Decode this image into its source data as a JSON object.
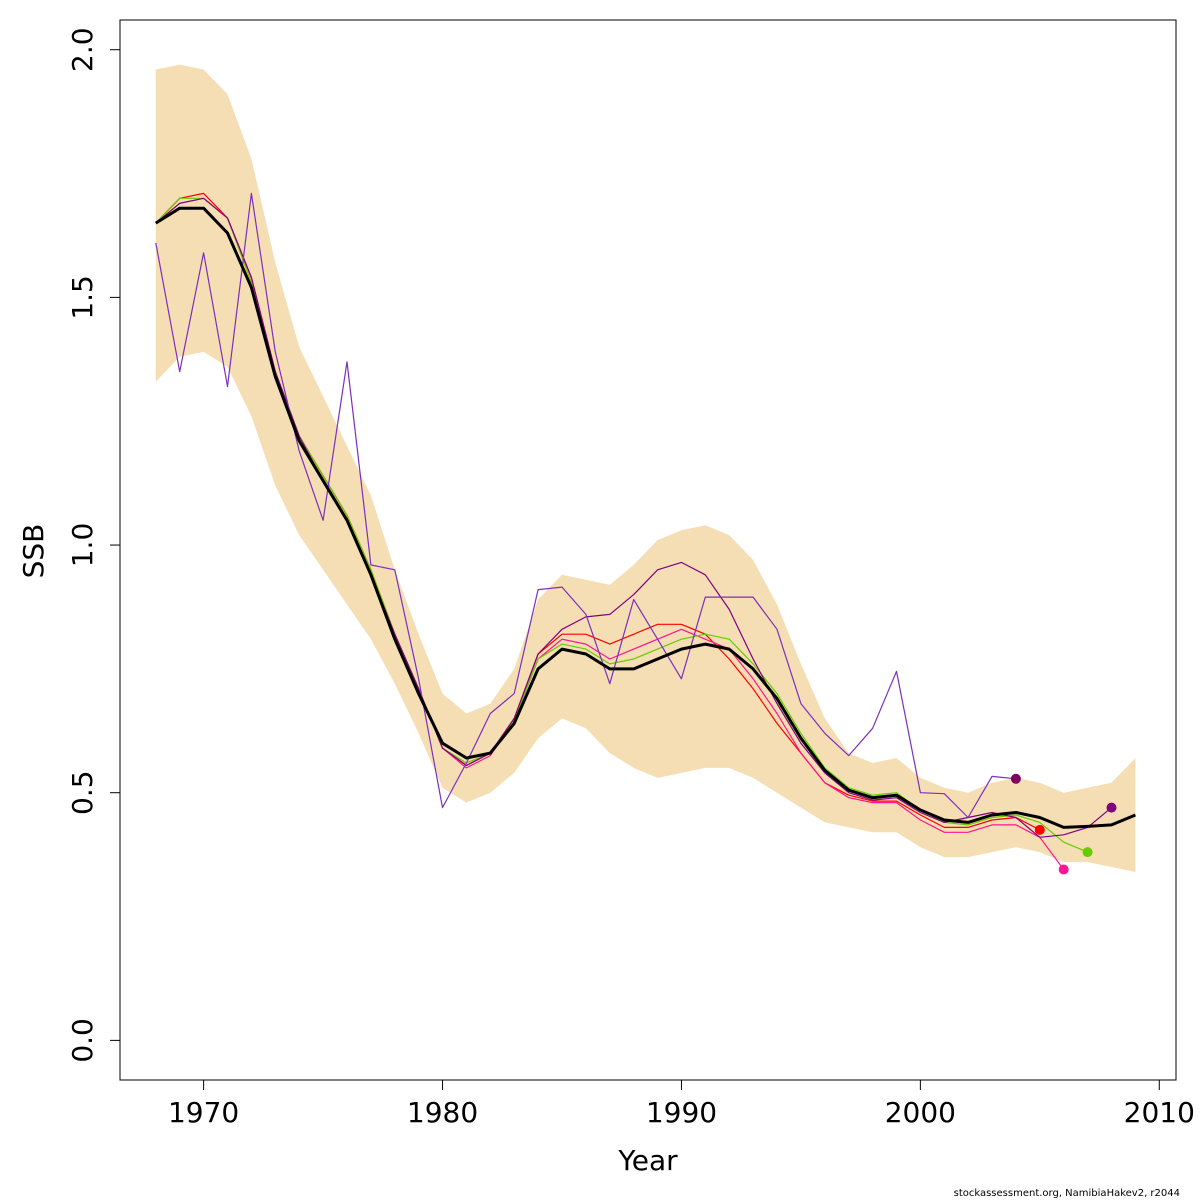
{
  "chart_data": {
    "type": "line",
    "xlabel": "Year",
    "ylabel": "SSB",
    "xlim": [
      1966.5,
      2010.7
    ],
    "ylim": [
      -0.08,
      2.06
    ],
    "xticks": [
      1970,
      1980,
      1990,
      2000,
      2010
    ],
    "yticks": [
      0.0,
      0.5,
      1.0,
      1.5,
      2.0
    ],
    "ytick_labels": [
      "0.0",
      "0.5",
      "1.0",
      "1.5",
      "2.0"
    ],
    "grid": false,
    "credit": "stockassessment.org, NamibiaHakev2, r2044",
    "band_color": "#f5deb3",
    "band": {
      "x": [
        1968,
        1969,
        1970,
        1971,
        1972,
        1973,
        1974,
        1975,
        1976,
        1977,
        1978,
        1979,
        1980,
        1981,
        1982,
        1983,
        1984,
        1985,
        1986,
        1987,
        1988,
        1989,
        1990,
        1991,
        1992,
        1993,
        1994,
        1995,
        1996,
        1997,
        1998,
        1999,
        2000,
        2001,
        2002,
        2003,
        2004,
        2005,
        2006,
        2007,
        2008,
        2009
      ],
      "upper": [
        1.96,
        1.97,
        1.96,
        1.91,
        1.78,
        1.57,
        1.4,
        1.3,
        1.2,
        1.1,
        0.95,
        0.82,
        0.7,
        0.66,
        0.68,
        0.75,
        0.89,
        0.94,
        0.93,
        0.92,
        0.96,
        1.01,
        1.03,
        1.04,
        1.02,
        0.97,
        0.88,
        0.76,
        0.65,
        0.58,
        0.56,
        0.57,
        0.53,
        0.51,
        0.5,
        0.52,
        0.53,
        0.52,
        0.5,
        0.51,
        0.52,
        0.57
      ],
      "lower": [
        1.33,
        1.38,
        1.39,
        1.36,
        1.26,
        1.12,
        1.02,
        0.95,
        0.88,
        0.81,
        0.72,
        0.62,
        0.51,
        0.48,
        0.5,
        0.54,
        0.61,
        0.65,
        0.63,
        0.58,
        0.55,
        0.53,
        0.54,
        0.55,
        0.55,
        0.53,
        0.5,
        0.47,
        0.44,
        0.43,
        0.42,
        0.42,
        0.39,
        0.37,
        0.37,
        0.38,
        0.39,
        0.38,
        0.36,
        0.36,
        0.35,
        0.34
      ]
    },
    "series": [
      {
        "color": "#000000",
        "width": 3,
        "x": [
          1968,
          1969,
          1970,
          1971,
          1972,
          1973,
          1974,
          1975,
          1976,
          1977,
          1978,
          1979,
          1980,
          1981,
          1982,
          1983,
          1984,
          1985,
          1986,
          1987,
          1988,
          1989,
          1990,
          1991,
          1992,
          1993,
          1994,
          1995,
          1996,
          1997,
          1998,
          1999,
          2000,
          2001,
          2002,
          2003,
          2004,
          2005,
          2006,
          2007,
          2008,
          2009
        ],
        "values": [
          1.65,
          1.68,
          1.68,
          1.63,
          1.52,
          1.34,
          1.21,
          1.13,
          1.05,
          0.94,
          0.81,
          0.7,
          0.6,
          0.57,
          0.58,
          0.64,
          0.75,
          0.79,
          0.78,
          0.75,
          0.75,
          0.77,
          0.79,
          0.8,
          0.79,
          0.75,
          0.69,
          0.61,
          0.545,
          0.505,
          0.49,
          0.495,
          0.465,
          0.445,
          0.44,
          0.455,
          0.46,
          0.45,
          0.43,
          0.432,
          0.435,
          0.455
        ]
      },
      {
        "color": "#ff0000",
        "width": 1.2,
        "x": [
          1968,
          1969,
          1970,
          1971,
          1972,
          1973,
          1974,
          1975,
          1976,
          1977,
          1978,
          1979,
          1980,
          1981,
          1982,
          1983,
          1984,
          1985,
          1986,
          1987,
          1988,
          1989,
          1990,
          1991,
          1992,
          1993,
          1994,
          1995,
          1996,
          1997,
          1998,
          1999,
          2000,
          2001,
          2002,
          2003,
          2004,
          2005
        ],
        "values": [
          1.65,
          1.7,
          1.71,
          1.66,
          1.54,
          1.35,
          1.22,
          1.14,
          1.06,
          0.95,
          0.82,
          0.71,
          0.59,
          0.555,
          0.58,
          0.65,
          0.78,
          0.82,
          0.82,
          0.8,
          0.82,
          0.84,
          0.84,
          0.82,
          0.77,
          0.71,
          0.64,
          0.58,
          0.52,
          0.495,
          0.483,
          0.483,
          0.455,
          0.43,
          0.43,
          0.445,
          0.45,
          0.425
        ],
        "end_marker": true
      },
      {
        "color": "#ff1493",
        "width": 1.2,
        "x": [
          1968,
          1969,
          1970,
          1971,
          1972,
          1973,
          1974,
          1975,
          1976,
          1977,
          1978,
          1979,
          1980,
          1981,
          1982,
          1983,
          1984,
          1985,
          1986,
          1987,
          1988,
          1989,
          1990,
          1991,
          1992,
          1993,
          1994,
          1995,
          1996,
          1997,
          1998,
          1999,
          2000,
          2001,
          2002,
          2003,
          2004,
          2005,
          2006
        ],
        "values": [
          1.65,
          1.69,
          1.7,
          1.66,
          1.54,
          1.35,
          1.22,
          1.14,
          1.06,
          0.95,
          0.82,
          0.71,
          0.59,
          0.55,
          0.575,
          0.645,
          0.77,
          0.81,
          0.8,
          0.77,
          0.79,
          0.81,
          0.83,
          0.81,
          0.79,
          0.73,
          0.66,
          0.58,
          0.52,
          0.49,
          0.48,
          0.48,
          0.445,
          0.42,
          0.42,
          0.435,
          0.435,
          0.41,
          0.345
        ],
        "end_marker": true
      },
      {
        "color": "#66cc00",
        "width": 1.2,
        "x": [
          1968,
          1969,
          1970,
          1971,
          1972,
          1973,
          1974,
          1975,
          1976,
          1977,
          1978,
          1979,
          1980,
          1981,
          1982,
          1983,
          1984,
          1985,
          1986,
          1987,
          1988,
          1989,
          1990,
          1991,
          1992,
          1993,
          1994,
          1995,
          1996,
          1997,
          1998,
          1999,
          2000,
          2001,
          2002,
          2003,
          2004,
          2005,
          2006,
          2007
        ],
        "values": [
          1.65,
          1.7,
          1.7,
          1.66,
          1.53,
          1.35,
          1.22,
          1.14,
          1.06,
          0.95,
          0.82,
          0.71,
          0.59,
          0.56,
          0.58,
          0.645,
          0.77,
          0.8,
          0.79,
          0.76,
          0.77,
          0.79,
          0.81,
          0.82,
          0.81,
          0.76,
          0.7,
          0.62,
          0.55,
          0.51,
          0.495,
          0.5,
          0.465,
          0.44,
          0.435,
          0.45,
          0.455,
          0.44,
          0.4,
          0.38
        ],
        "end_marker": true
      },
      {
        "color": "#800080",
        "width": 1.2,
        "x": [
          1968,
          1969,
          1970,
          1971,
          1972,
          1973,
          1974,
          1975,
          1976,
          1977,
          1978,
          1979,
          1980,
          1981,
          1982,
          1983,
          1984,
          1985,
          1986,
          1987,
          1988,
          1989,
          1990,
          1991,
          1992,
          1993,
          1994,
          1995,
          1996,
          1997,
          1998,
          1999,
          2000,
          2001,
          2002,
          2003,
          2004,
          2005,
          2006,
          2007,
          2008
        ],
        "values": [
          1.65,
          1.69,
          1.7,
          1.66,
          1.54,
          1.35,
          1.22,
          1.13,
          1.05,
          0.94,
          0.82,
          0.71,
          0.59,
          0.555,
          0.58,
          0.65,
          0.78,
          0.83,
          0.855,
          0.86,
          0.9,
          0.95,
          0.965,
          0.94,
          0.87,
          0.77,
          0.68,
          0.6,
          0.54,
          0.5,
          0.485,
          0.49,
          0.46,
          0.44,
          0.45,
          0.46,
          0.45,
          0.41,
          0.415,
          0.43,
          0.47
        ],
        "end_marker": true
      },
      {
        "color": "#7b2fbe",
        "width": 1.2,
        "x": [
          1968,
          1969,
          1970,
          1971,
          1972,
          1973,
          1974,
          1975,
          1976,
          1977,
          1978,
          1979,
          1980,
          1981,
          1982,
          1983,
          1984,
          1985,
          1986,
          1987,
          1988,
          1989,
          1990,
          1991,
          1992,
          1993,
          1994,
          1995,
          1996,
          1997,
          1998,
          1999,
          2000,
          2001,
          2002,
          2003,
          2004
        ],
        "values": [
          1.61,
          1.35,
          1.59,
          1.32,
          1.71,
          1.39,
          1.19,
          1.05,
          1.37,
          0.96,
          0.95,
          0.73,
          0.47,
          0.56,
          0.66,
          0.7,
          0.91,
          0.915,
          0.86,
          0.72,
          0.89,
          0.81,
          0.73,
          0.895,
          0.895,
          0.895,
          0.83,
          0.68,
          0.62,
          0.575,
          0.63,
          0.745,
          0.5,
          0.498,
          0.45,
          0.533,
          0.528
        ],
        "end_marker": true,
        "end_color": "#800060"
      }
    ]
  }
}
